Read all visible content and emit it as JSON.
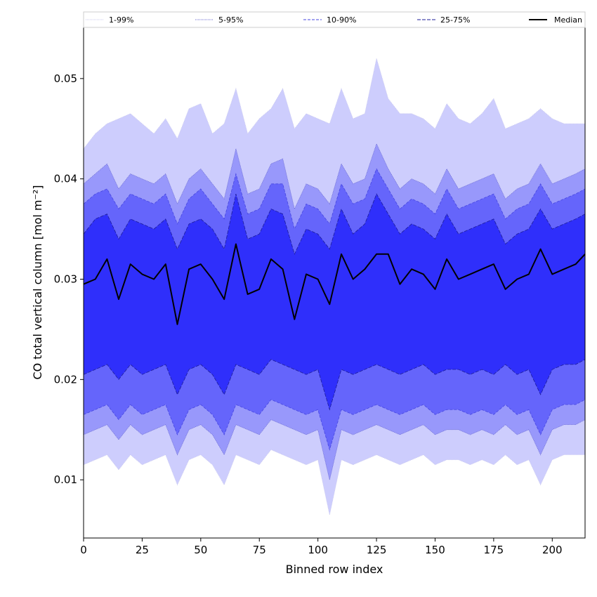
{
  "chart_data": {
    "type": "area",
    "xlabel": "Binned row index",
    "ylabel": "CO total vertical column [mol m⁻²]",
    "xlim": [
      0,
      214
    ],
    "ylim": [
      0.0042,
      0.0551
    ],
    "x_ticks": [
      "0",
      "25",
      "50",
      "75",
      "100",
      "125",
      "150",
      "175",
      "200"
    ],
    "y_ticks": [
      "0.01",
      "0.02",
      "0.03",
      "0.04",
      "0.05"
    ],
    "grid": false,
    "legend_position": "top",
    "bands": [
      {
        "name": "1-99%",
        "fill": "#cdcdfd",
        "line": "#c8c8ee",
        "dash": "1,1"
      },
      {
        "name": "5-95%",
        "fill": "#9898fb",
        "line": "#6a6ad2",
        "dash": "1,1"
      },
      {
        "name": "10-90%",
        "fill": "#6565fb",
        "line": "#4747e0",
        "dash": "4,2"
      },
      {
        "name": "25-75%",
        "fill": "#2f2ffb",
        "line": "#1e1e9a",
        "dash": "5,2"
      }
    ],
    "median": {
      "name": "Median",
      "color": "#000000"
    },
    "x": [
      0,
      5,
      10,
      15,
      20,
      25,
      30,
      35,
      40,
      45,
      50,
      55,
      60,
      65,
      70,
      75,
      80,
      85,
      90,
      95,
      100,
      105,
      110,
      115,
      120,
      125,
      130,
      135,
      140,
      145,
      150,
      155,
      160,
      165,
      170,
      175,
      180,
      185,
      190,
      195,
      200,
      205,
      210,
      214
    ],
    "series": [
      {
        "name": "1%",
        "values": [
          0.0115,
          0.012,
          0.0125,
          0.011,
          0.0125,
          0.0115,
          0.012,
          0.0125,
          0.0095,
          0.012,
          0.0125,
          0.0115,
          0.0095,
          0.0125,
          0.012,
          0.0115,
          0.013,
          0.0125,
          0.012,
          0.0115,
          0.012,
          0.0065,
          0.012,
          0.0115,
          0.012,
          0.0125,
          0.012,
          0.0115,
          0.012,
          0.0125,
          0.0115,
          0.012,
          0.012,
          0.0115,
          0.012,
          0.0115,
          0.0125,
          0.0115,
          0.012,
          0.0095,
          0.012,
          0.0125,
          0.0125,
          0.0125
        ]
      },
      {
        "name": "5%",
        "values": [
          0.0145,
          0.015,
          0.0155,
          0.014,
          0.0155,
          0.0145,
          0.015,
          0.0155,
          0.0125,
          0.015,
          0.0155,
          0.0145,
          0.0125,
          0.0155,
          0.015,
          0.0145,
          0.016,
          0.0155,
          0.015,
          0.0145,
          0.015,
          0.01,
          0.015,
          0.0145,
          0.015,
          0.0155,
          0.015,
          0.0145,
          0.015,
          0.0155,
          0.0145,
          0.015,
          0.015,
          0.0145,
          0.015,
          0.0145,
          0.0155,
          0.0145,
          0.015,
          0.0125,
          0.015,
          0.0155,
          0.0155,
          0.016
        ]
      },
      {
        "name": "10%",
        "values": [
          0.0165,
          0.017,
          0.0175,
          0.016,
          0.0175,
          0.0165,
          0.017,
          0.0175,
          0.0145,
          0.017,
          0.0175,
          0.0165,
          0.0145,
          0.0175,
          0.017,
          0.0165,
          0.018,
          0.0175,
          0.017,
          0.0165,
          0.017,
          0.013,
          0.017,
          0.0165,
          0.017,
          0.0175,
          0.017,
          0.0165,
          0.017,
          0.0175,
          0.0165,
          0.017,
          0.017,
          0.0165,
          0.017,
          0.0165,
          0.0175,
          0.0165,
          0.017,
          0.0145,
          0.017,
          0.0175,
          0.0175,
          0.018
        ]
      },
      {
        "name": "25%",
        "values": [
          0.0205,
          0.021,
          0.0215,
          0.02,
          0.0215,
          0.0205,
          0.021,
          0.0215,
          0.0185,
          0.021,
          0.0215,
          0.0205,
          0.0185,
          0.0215,
          0.021,
          0.0205,
          0.022,
          0.0215,
          0.021,
          0.0205,
          0.021,
          0.017,
          0.021,
          0.0205,
          0.021,
          0.0215,
          0.021,
          0.0205,
          0.021,
          0.0215,
          0.0205,
          0.021,
          0.021,
          0.0205,
          0.021,
          0.0205,
          0.0215,
          0.0205,
          0.021,
          0.0185,
          0.021,
          0.0215,
          0.0215,
          0.022
        ]
      },
      {
        "name": "Median",
        "values": [
          0.0295,
          0.03,
          0.032,
          0.028,
          0.0315,
          0.0305,
          0.03,
          0.0315,
          0.0255,
          0.031,
          0.0315,
          0.03,
          0.028,
          0.0335,
          0.0285,
          0.029,
          0.032,
          0.031,
          0.026,
          0.0305,
          0.03,
          0.0275,
          0.0325,
          0.03,
          0.031,
          0.0325,
          0.0325,
          0.0295,
          0.031,
          0.0305,
          0.029,
          0.032,
          0.03,
          0.0305,
          0.031,
          0.0315,
          0.029,
          0.03,
          0.0305,
          0.033,
          0.0305,
          0.031,
          0.0315,
          0.0325
        ]
      },
      {
        "name": "75%",
        "values": [
          0.0345,
          0.036,
          0.0365,
          0.034,
          0.036,
          0.0355,
          0.035,
          0.036,
          0.033,
          0.0355,
          0.036,
          0.035,
          0.033,
          0.0385,
          0.034,
          0.0345,
          0.037,
          0.0365,
          0.0325,
          0.035,
          0.0345,
          0.033,
          0.037,
          0.0345,
          0.0355,
          0.0385,
          0.0365,
          0.0345,
          0.0355,
          0.035,
          0.034,
          0.0365,
          0.0345,
          0.035,
          0.0355,
          0.036,
          0.0335,
          0.0345,
          0.035,
          0.037,
          0.035,
          0.0355,
          0.036,
          0.0365
        ]
      },
      {
        "name": "90%",
        "values": [
          0.0375,
          0.0385,
          0.039,
          0.037,
          0.0385,
          0.038,
          0.0375,
          0.0385,
          0.0355,
          0.038,
          0.039,
          0.0375,
          0.036,
          0.0405,
          0.0365,
          0.037,
          0.0395,
          0.0395,
          0.035,
          0.0375,
          0.037,
          0.0355,
          0.0395,
          0.0375,
          0.038,
          0.041,
          0.039,
          0.037,
          0.038,
          0.0375,
          0.0365,
          0.039,
          0.037,
          0.0375,
          0.038,
          0.0385,
          0.036,
          0.037,
          0.0375,
          0.0395,
          0.0375,
          0.038,
          0.0385,
          0.039
        ]
      },
      {
        "name": "95%",
        "values": [
          0.0395,
          0.0405,
          0.0415,
          0.039,
          0.0405,
          0.04,
          0.0395,
          0.0405,
          0.0375,
          0.04,
          0.041,
          0.0395,
          0.038,
          0.043,
          0.0385,
          0.039,
          0.0415,
          0.042,
          0.037,
          0.0395,
          0.039,
          0.0375,
          0.0415,
          0.0395,
          0.04,
          0.0435,
          0.041,
          0.039,
          0.04,
          0.0395,
          0.0385,
          0.041,
          0.039,
          0.0395,
          0.04,
          0.0405,
          0.038,
          0.039,
          0.0395,
          0.0415,
          0.0395,
          0.04,
          0.0405,
          0.041
        ]
      },
      {
        "name": "99%",
        "values": [
          0.043,
          0.0445,
          0.0455,
          0.046,
          0.0465,
          0.0455,
          0.0445,
          0.046,
          0.044,
          0.047,
          0.0475,
          0.0445,
          0.0455,
          0.049,
          0.0445,
          0.046,
          0.047,
          0.049,
          0.045,
          0.0465,
          0.046,
          0.0455,
          0.049,
          0.046,
          0.0465,
          0.052,
          0.048,
          0.0465,
          0.0465,
          0.046,
          0.045,
          0.0475,
          0.046,
          0.0455,
          0.0465,
          0.048,
          0.045,
          0.0455,
          0.046,
          0.047,
          0.046,
          0.0455,
          0.0455,
          0.0455
        ]
      }
    ]
  }
}
